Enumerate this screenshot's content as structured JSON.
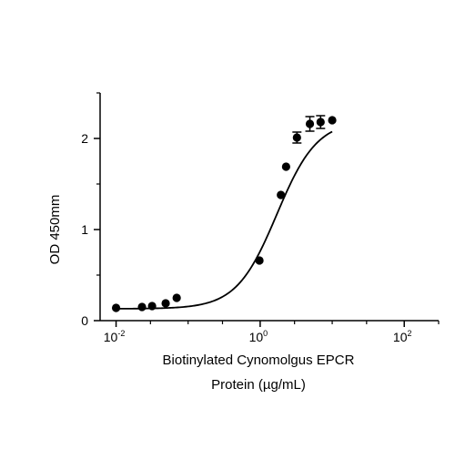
{
  "chart_data": {
    "type": "scatter",
    "title": "",
    "xlabel_line1": "Biotinylated Cynomolgus EPCR",
    "xlabel_line2": "Protein (µg/mL)",
    "ylabel": "OD 450mm",
    "x_scale": "log10",
    "xlim": [
      0.006,
      300
    ],
    "ylim": [
      0,
      2.5
    ],
    "x_ticks": [
      {
        "value": 0.01,
        "base": "10",
        "exp": "-2"
      },
      {
        "value": 1,
        "base": "10",
        "exp": "0"
      },
      {
        "value": 100,
        "base": "10",
        "exp": "2"
      }
    ],
    "y_ticks": [
      {
        "value": 0,
        "label": "0"
      },
      {
        "value": 1,
        "label": "1"
      },
      {
        "value": 2,
        "label": "2"
      }
    ],
    "grid": false,
    "legend": "none",
    "marker_color": "#000000",
    "series": [
      {
        "points": [
          {
            "x": 0.01,
            "y": 0.14,
            "err": 0
          },
          {
            "x": 0.0229,
            "y": 0.15,
            "err": 0
          },
          {
            "x": 0.0316,
            "y": 0.16,
            "err": 0
          },
          {
            "x": 0.0488,
            "y": 0.19,
            "err": 0
          },
          {
            "x": 0.0694,
            "y": 0.25,
            "err": 0
          },
          {
            "x": 0.977,
            "y": 0.66,
            "err": 0
          },
          {
            "x": 1.94,
            "y": 1.38,
            "err": 0
          },
          {
            "x": 2.29,
            "y": 1.69,
            "err": 0
          },
          {
            "x": 3.24,
            "y": 2.01,
            "err": 0.06
          },
          {
            "x": 4.9,
            "y": 2.16,
            "err": 0.08
          },
          {
            "x": 6.9,
            "y": 2.18,
            "err": 0.07
          },
          {
            "x": 10.0,
            "y": 2.2,
            "err": 0
          }
        ]
      }
    ],
    "fit": {
      "model": "4PL",
      "bottom": 0.13,
      "top": 2.2,
      "ec50": 1.7,
      "hill": 1.55
    }
  }
}
